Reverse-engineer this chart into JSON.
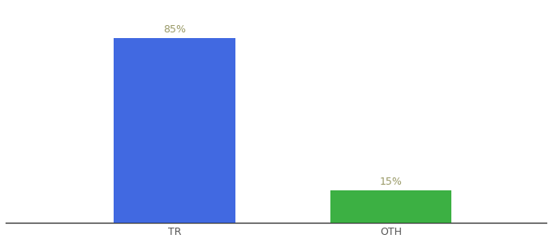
{
  "categories": [
    "TR",
    "OTH"
  ],
  "values": [
    85,
    15
  ],
  "bar_colors": [
    "#4169e1",
    "#3cb043"
  ],
  "label_color": "#999966",
  "label_fontsize": 9,
  "tick_fontsize": 9,
  "tick_color": "#555555",
  "background_color": "#ffffff",
  "ylim": [
    0,
    100
  ],
  "bar_width": 0.18,
  "x_positions": [
    0.3,
    0.62
  ],
  "xlim": [
    0.05,
    0.85
  ],
  "figsize": [
    6.8,
    3.0
  ],
  "dpi": 100
}
